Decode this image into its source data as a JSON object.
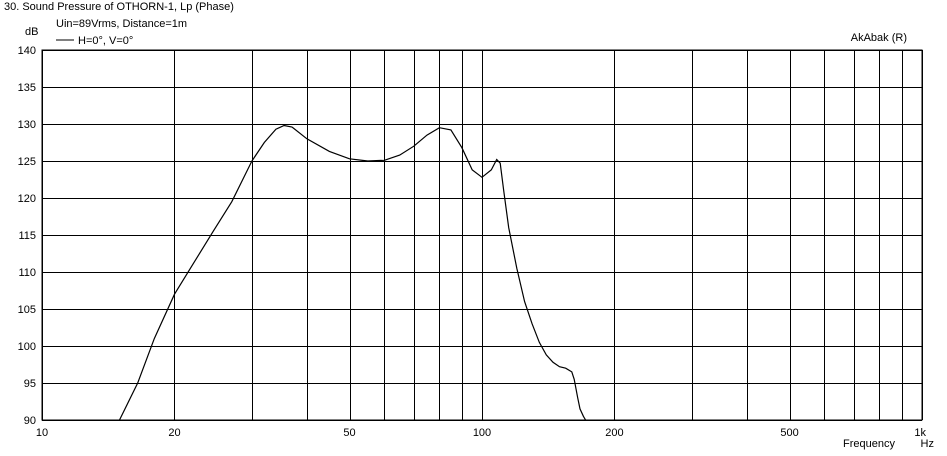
{
  "chart_data": {
    "type": "line",
    "title": "30. Sound Pressure of OTHORN-1, Lp (Phase)",
    "subtitle": "Uin=89Vrms, Distance=1m",
    "watermark": "AkAbak (R)",
    "xlabel": "Frequency",
    "x_unit": "Hz",
    "ylabel": "dB",
    "x_scale": "log",
    "xlim": [
      10,
      1000
    ],
    "ylim": [
      90,
      140
    ],
    "grid": true,
    "legend_position": "top-left",
    "x_ticks": [
      {
        "v": 10,
        "label": "10"
      },
      {
        "v": 20,
        "label": "20"
      },
      {
        "v": 50,
        "label": "50"
      },
      {
        "v": 100,
        "label": "100"
      },
      {
        "v": 200,
        "label": "200"
      },
      {
        "v": 500,
        "label": "500"
      },
      {
        "v": 1000,
        "label": "1k"
      }
    ],
    "x_minor": [
      30,
      40,
      60,
      70,
      80,
      90,
      300,
      400,
      600,
      700,
      800,
      900
    ],
    "y_ticks": [
      90,
      95,
      100,
      105,
      110,
      115,
      120,
      125,
      130,
      135,
      140
    ],
    "series": [
      {
        "name": "H=0°, V=0°",
        "color": "#000000",
        "x": [
          15.0,
          16.5,
          18.0,
          20.0,
          22.0,
          24.5,
          27.0,
          30.0,
          32.0,
          34.0,
          35.5,
          37.0,
          40.0,
          45.0,
          50.0,
          55.0,
          60.0,
          65.0,
          70.0,
          75.0,
          80.0,
          85.0,
          90.0,
          95.0,
          100.0,
          105.0,
          108.0,
          110.0,
          112.0,
          115.0,
          120.0,
          125.0,
          130.0,
          135.0,
          140.0,
          145.0,
          150.0,
          155.0,
          160.0,
          162.0,
          165.0,
          167.0,
          170.0,
          172.0
        ],
        "y": [
          90.0,
          95.0,
          101.0,
          107.0,
          111.0,
          115.5,
          119.5,
          125.0,
          127.5,
          129.3,
          129.8,
          129.6,
          128.0,
          126.3,
          125.3,
          125.0,
          125.1,
          125.8,
          127.0,
          128.5,
          129.5,
          129.2,
          126.8,
          123.8,
          122.8,
          123.8,
          125.2,
          124.7,
          121.0,
          116.0,
          110.5,
          106.0,
          103.0,
          100.5,
          98.8,
          97.8,
          97.2,
          97.0,
          96.5,
          95.5,
          93.0,
          91.5,
          90.5,
          90.0
        ]
      }
    ]
  }
}
